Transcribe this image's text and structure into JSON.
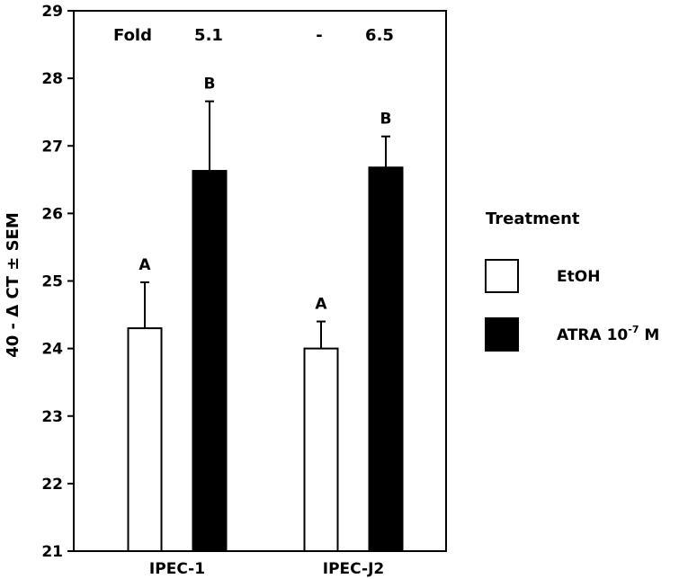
{
  "chart_data": {
    "type": "bar",
    "categories": [
      "IPEC-1",
      "IPEC-J2"
    ],
    "series": [
      {
        "name": "EtOH",
        "color": "#ffffff",
        "values": [
          24.3,
          24.0
        ],
        "errors": [
          0.68,
          0.4
        ],
        "letters": [
          "A",
          "A"
        ]
      },
      {
        "name": "ATRA 10-7 M",
        "color": "#000000",
        "values": [
          26.63,
          26.68
        ],
        "errors": [
          1.03,
          0.46
        ],
        "letters": [
          "B",
          "B"
        ]
      }
    ],
    "ylabel": "40 - Δ CT ± SEM",
    "ylim": [
      21,
      29
    ],
    "yticks": [
      21,
      22,
      23,
      24,
      25,
      26,
      27,
      28,
      29
    ],
    "fold": {
      "label": "Fold",
      "groups": [
        {
          "col1": "5.1"
        },
        {
          "col0": "-",
          "col1": "6.5"
        }
      ]
    },
    "legend": {
      "title": "Treatment",
      "position": "right",
      "items": [
        {
          "label": "EtOH"
        },
        {
          "label": "ATRA 10",
          "sup": "-7",
          "suffix": " M"
        }
      ]
    },
    "grid": false
  }
}
